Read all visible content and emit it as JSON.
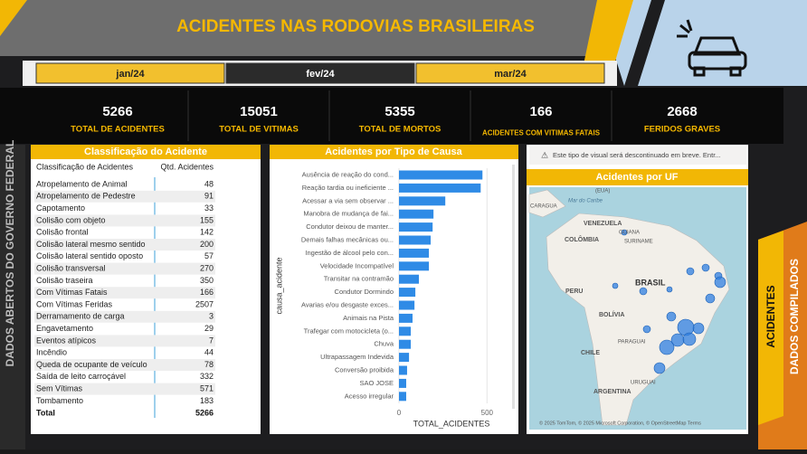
{
  "header": {
    "title": "ACIDENTES NAS RODOVIAS BRASILEIRAS",
    "tabs": [
      "jan/24",
      "fev/24",
      "mar/24"
    ]
  },
  "kpis": [
    {
      "value": "5266",
      "label": "TOTAL DE ACIDENTES"
    },
    {
      "value": "15051",
      "label": "TOTAL DE VITIMAS"
    },
    {
      "value": "5355",
      "label": "TOTAL DE MORTOS"
    },
    {
      "value": "166",
      "label": "ACIDENTES COM VITIMAS FATAIS"
    },
    {
      "value": "2668",
      "label": "FERIDOS GRAVES"
    }
  ],
  "side": {
    "left": "DADOS ABERTOS DO GOVERNO FEDERAL",
    "right1": "ACIDENTES",
    "right2": "DADOS COMPILADOS"
  },
  "table": {
    "title": "Classificação do Acidente",
    "columns": [
      "Classificação de Acidentes",
      "Qtd. Acidentes"
    ],
    "rows": [
      [
        "Atropelamento de Animal",
        "48"
      ],
      [
        "Atropelamento de Pedestre",
        "91"
      ],
      [
        "Capotamento",
        "33"
      ],
      [
        "Colisão com objeto",
        "155"
      ],
      [
        "Colisão frontal",
        "142"
      ],
      [
        "Colisão lateral mesmo sentido",
        "200"
      ],
      [
        "Colisão lateral sentido oposto",
        "57"
      ],
      [
        "Colisão transversal",
        "270"
      ],
      [
        "Colisão traseira",
        "350"
      ],
      [
        "Com Vítimas Fatais",
        "166"
      ],
      [
        "Com Vítimas Feridas",
        "2507"
      ],
      [
        "Derramamento de carga",
        "3"
      ],
      [
        "Engavetamento",
        "29"
      ],
      [
        "Eventos atípicos",
        "7"
      ],
      [
        "Incêndio",
        "44"
      ],
      [
        "Queda de ocupante de veículo",
        "78"
      ],
      [
        "Saída de leito carroçável",
        "332"
      ],
      [
        "Sem Vítimas",
        "571"
      ],
      [
        "Tombamento",
        "183"
      ]
    ],
    "total": [
      "Total",
      "5266"
    ]
  },
  "chart_data": {
    "type": "bar",
    "orientation": "horizontal",
    "title": "Acidentes por Tipo de Causa",
    "x_label": "TOTAL_ACIDENTES",
    "y_label": "causa_acidente",
    "color": "#2f8be6",
    "categories": [
      "Ausência de reação do cond...",
      "Reação tardia ou ineficiente ...",
      "Acessar a via sem observar ...",
      "Manobra de mudança de fai...",
      "Condutor deixou de manter...",
      "Demais falhas mecânicas ou...",
      "Ingestão de álcool pelo con...",
      "Velocidade Incompatível",
      "Transitar na contramão",
      "Condutor Dormindo",
      "Avarias e/ou desgaste exces...",
      "Animais na Pista",
      "Trafegar com motocicleta (o...",
      "Chuva",
      "Ultrapassagem Indevida",
      "Conversão proibida",
      "SAO JOSE",
      "Acesso irregular"
    ],
    "values": [
      474,
      464,
      263,
      196,
      191,
      180,
      170,
      170,
      113,
      93,
      88,
      77,
      67,
      67,
      57,
      46,
      41,
      41
    ],
    "xlim": [
      0,
      560
    ],
    "xticks": [
      0,
      500
    ]
  },
  "map": {
    "warning": "Este tipo de visual será descontinuado em breve. Entr...",
    "title": "Acidentes por UF",
    "labels": [
      "(EUA)",
      "CARAGUA",
      "Mar do Caribe",
      "VENEZUELA",
      "COLÔMBIA",
      "GUIANA",
      "SURINAME",
      "PERU",
      "BRASIL",
      "BOLÍVIA",
      "PARAGUAI",
      "CHILE",
      "ARGENTINA",
      "URUGUAI"
    ],
    "attribution": "© 2025 TomTom, © 2025 Microsoft Corporation, © OpenStreetMap Terms"
  }
}
